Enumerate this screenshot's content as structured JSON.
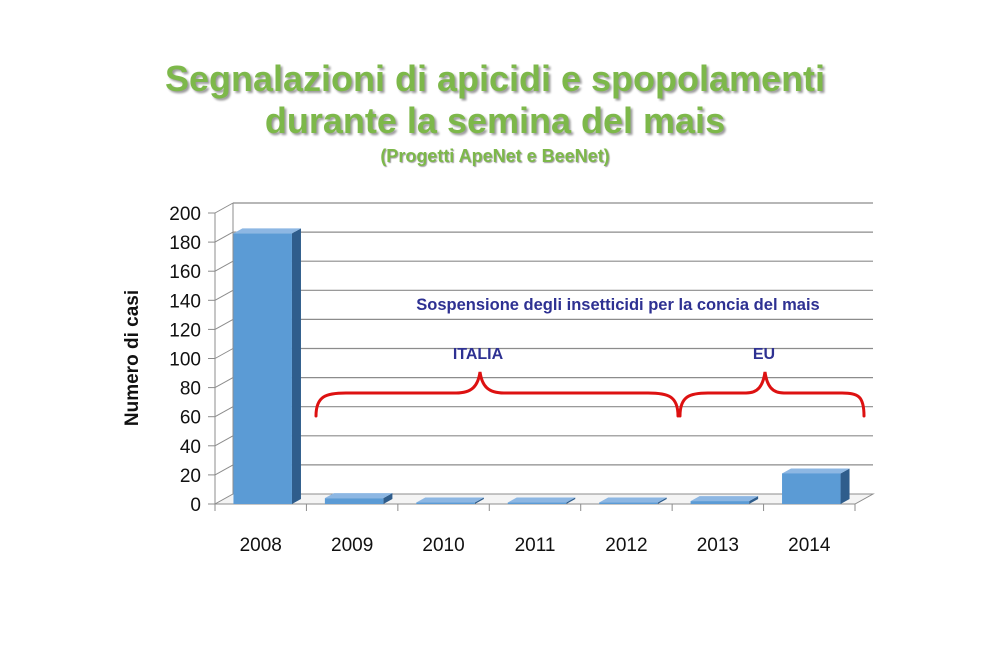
{
  "title": "Segnalazioni di apicidi e spopolamenti",
  "title_line2": "durante la semina del mais",
  "subtitle": "(Progetti ApeNet e BeeNet)",
  "colors": {
    "title": "#7db84a",
    "bar_front": "#5b9bd5",
    "bar_top": "#8db7e3",
    "bar_side": "#2f5d8c",
    "annotation_text": "#2e3192",
    "brace": "#dd1111"
  },
  "chart_data": {
    "type": "bar",
    "categories": [
      "2008",
      "2009",
      "2010",
      "2011",
      "2012",
      "2013",
      "2014"
    ],
    "values": [
      186,
      4,
      1,
      1,
      1,
      2,
      21
    ],
    "ylabel": "Numero di casi",
    "ylim": [
      0,
      200
    ],
    "yticks": [
      0,
      20,
      40,
      60,
      80,
      100,
      120,
      140,
      160,
      180,
      200
    ],
    "grid": true,
    "annotations": {
      "heading": "Sospensione degli insetticidi per la concia del mais",
      "italia": "ITALIA",
      "eu": "EU"
    }
  }
}
